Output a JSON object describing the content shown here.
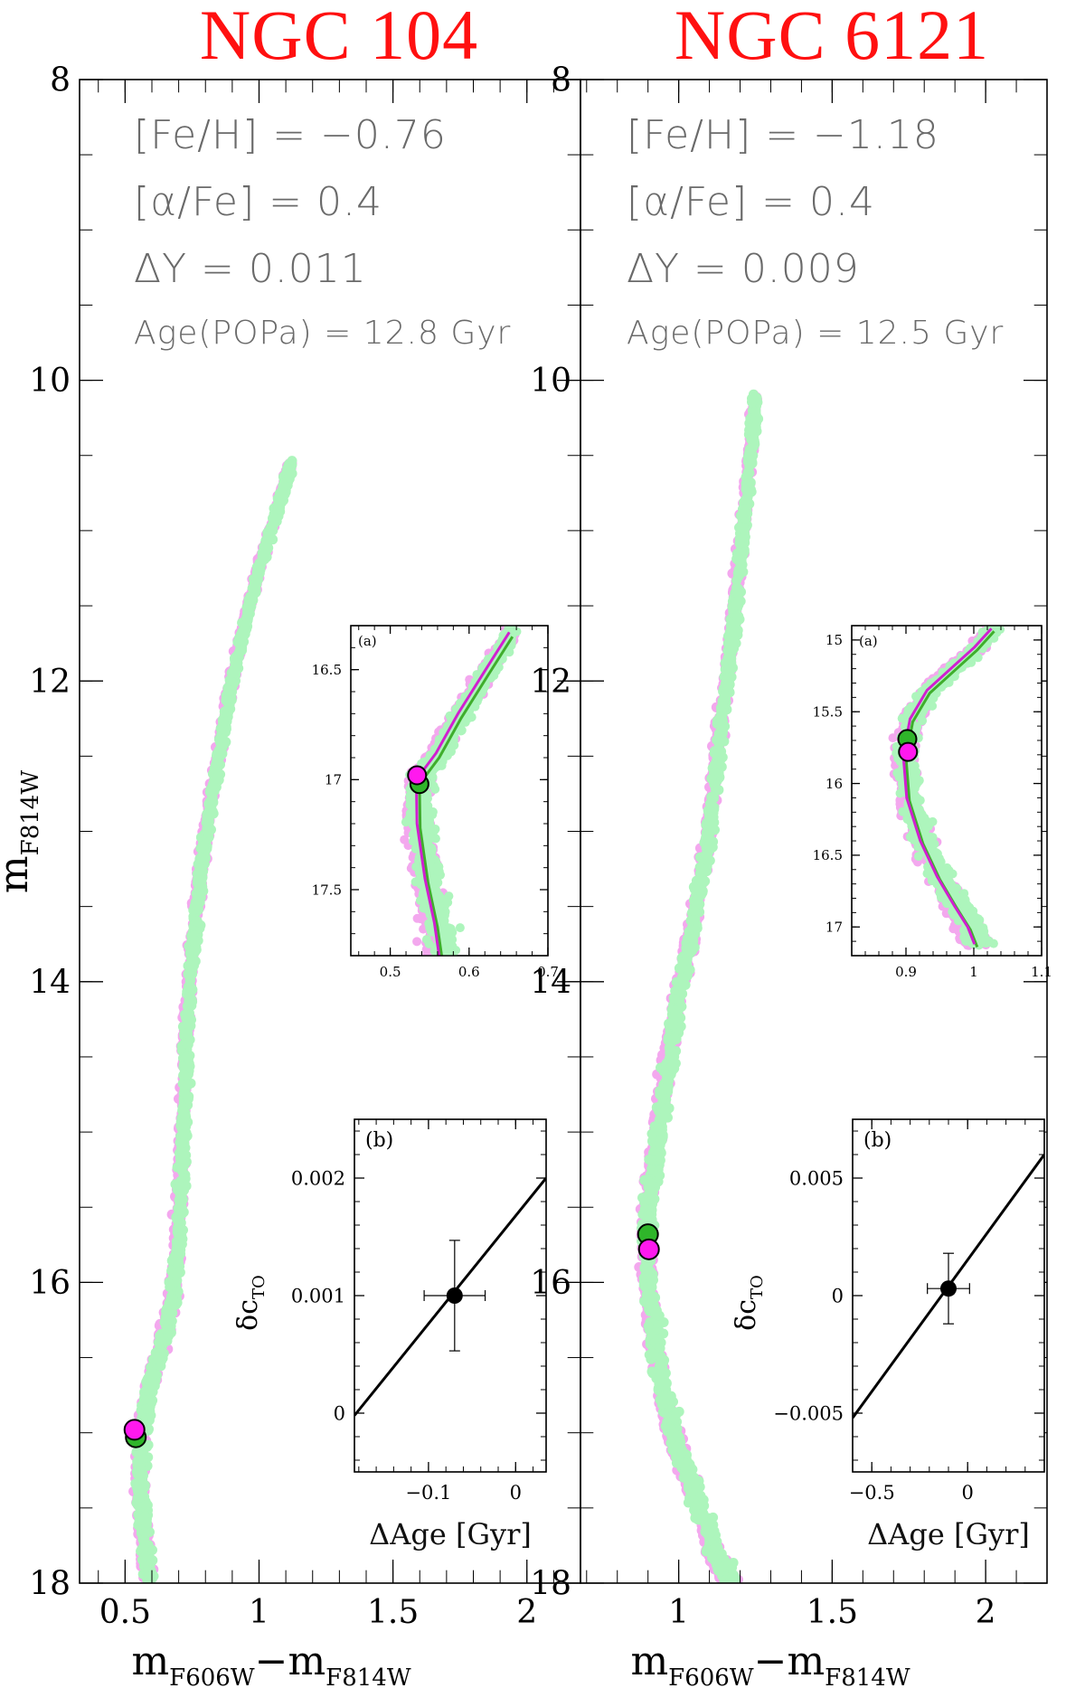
{
  "figure": {
    "y_label_main": "m",
    "y_label_sub": "F814W",
    "x_label_main_a": "m",
    "x_label_sub_a": "F606W",
    "x_label_dash": "−",
    "x_label_main_b": "m",
    "x_label_sub_b": "F814W"
  },
  "colors": {
    "popA": "#f3a8ee",
    "popB": "#adf5bc",
    "marker_green": "#2fb52a",
    "marker_magenta": "#ff19ee",
    "title_red": "#ff1010",
    "text_gray": "#6a6a6a"
  },
  "panels": [
    {
      "title": "NGC 104",
      "feh": "[Fe/H]  =  −0.76",
      "afe": "[α/Fe]  =  0.4",
      "dy": "ΔY  =  0.011",
      "age": "Age(POPa)  =  12.8  Gyr"
    },
    {
      "title": "NGC 6121",
      "feh": "[Fe/H]  =  −1.18",
      "afe": "[α/Fe]  =  0.4",
      "dy": "ΔY  =  0.009",
      "age": "Age(POPa)  =  12.5  Gyr"
    }
  ],
  "chart_data": [
    {
      "type": "scatter",
      "title": "NGC 104",
      "xlabel": "mF606W − mF814W",
      "ylabel": "mF814W",
      "xlim": [
        0.33,
        2.2
      ],
      "ylim": [
        18,
        8
      ],
      "x_ticks": [
        0.5,
        1,
        1.5,
        2
      ],
      "x_tick_labels": [
        "0.5",
        "1",
        "1.5",
        "2"
      ],
      "y_ticks": [
        8,
        10,
        12,
        14,
        16,
        18
      ],
      "y_tick_labels": [
        "8",
        "10",
        "12",
        "14",
        "16",
        "18"
      ],
      "ridge": [
        [
          1.12,
          10.55
        ],
        [
          1.07,
          10.85
        ],
        [
          1.0,
          11.25
        ],
        [
          0.95,
          11.6
        ],
        [
          0.9,
          12.0
        ],
        [
          0.86,
          12.4
        ],
        [
          0.82,
          12.8
        ],
        [
          0.78,
          13.3
        ],
        [
          0.75,
          13.8
        ],
        [
          0.73,
          14.3
        ],
        [
          0.72,
          14.8
        ],
        [
          0.71,
          15.3
        ],
        [
          0.7,
          15.7
        ],
        [
          0.68,
          16.1
        ],
        [
          0.64,
          16.4
        ],
        [
          0.59,
          16.7
        ],
        [
          0.56,
          17.0
        ],
        [
          0.56,
          17.4
        ],
        [
          0.57,
          17.7
        ],
        [
          0.59,
          18.0
        ]
      ],
      "markers": [
        {
          "name": "POPb turnoff",
          "x": 0.54,
          "y": 17.03,
          "color": "green"
        },
        {
          "name": "POPa turnoff",
          "x": 0.535,
          "y": 16.98,
          "color": "magenta"
        }
      ],
      "inset_a": {
        "label": "(a)",
        "xlim": [
          0.45,
          0.7
        ],
        "ylim": [
          17.8,
          16.3
        ],
        "x_ticks": [
          0.5,
          0.6,
          0.7
        ],
        "x_tick_labels": [
          "0.5",
          "0.6",
          "0.7"
        ],
        "y_ticks": [
          16.5,
          17,
          17.5
        ],
        "y_tick_labels": [
          "16.5",
          "17",
          "17.5"
        ],
        "fiducial": [
          [
            0.655,
            16.33
          ],
          [
            0.625,
            16.5
          ],
          [
            0.59,
            16.7
          ],
          [
            0.562,
            16.88
          ],
          [
            0.537,
            17.0
          ],
          [
            0.538,
            17.2
          ],
          [
            0.548,
            17.45
          ],
          [
            0.56,
            17.65
          ],
          [
            0.566,
            17.8
          ]
        ],
        "markers": [
          {
            "name": "POPb turnoff",
            "x": 0.537,
            "y": 17.02,
            "color": "green"
          },
          {
            "name": "POPa turnoff",
            "x": 0.534,
            "y": 16.98,
            "color": "magenta"
          }
        ]
      },
      "inset_b": {
        "label": "(b)",
        "xlabel": "ΔAge [Gyr]",
        "ylabel_main": "δc",
        "ylabel_sub": "TO",
        "xlim": [
          -0.185,
          0.035
        ],
        "ylim": [
          -0.0005,
          0.0025
        ],
        "x_ticks": [
          -0.1,
          0
        ],
        "x_tick_labels": [
          "−0.1",
          "0"
        ],
        "y_ticks": [
          0,
          0.001,
          0.002
        ],
        "y_tick_labels": [
          "0",
          "0.001",
          "0.002"
        ],
        "line": [
          [
            -0.185,
            -2e-05
          ],
          [
            0.035,
            0.002
          ]
        ],
        "point": {
          "x": -0.07,
          "y": 0.001,
          "xerr": 0.035,
          "yerr": 0.00047
        }
      }
    },
    {
      "type": "scatter",
      "title": "NGC 6121",
      "xlabel": "mF606W − mF814W",
      "ylabel": "mF814W",
      "xlim": [
        0.68,
        2.2
      ],
      "ylim": [
        18,
        8
      ],
      "x_ticks": [
        1,
        1.5,
        2
      ],
      "x_tick_labels": [
        "1",
        "1.5",
        "2"
      ],
      "y_ticks": [
        8,
        10,
        12,
        14,
        16,
        18
      ],
      "y_tick_labels": [
        "8",
        "10",
        "12",
        "14",
        "16",
        "18"
      ],
      "ridge": [
        [
          1.25,
          10.1
        ],
        [
          1.23,
          10.6
        ],
        [
          1.2,
          11.2
        ],
        [
          1.17,
          11.8
        ],
        [
          1.13,
          12.4
        ],
        [
          1.1,
          13.0
        ],
        [
          1.05,
          13.6
        ],
        [
          1.0,
          14.1
        ],
        [
          0.96,
          14.6
        ],
        [
          0.93,
          15.1
        ],
        [
          0.9,
          15.5
        ],
        [
          0.9,
          16.0
        ],
        [
          0.93,
          16.5
        ],
        [
          0.98,
          17.0
        ],
        [
          1.05,
          17.4
        ],
        [
          1.12,
          17.8
        ],
        [
          1.17,
          18.0
        ]
      ],
      "markers": [
        {
          "name": "POPb turnoff",
          "x": 0.9,
          "y": 15.68,
          "color": "green"
        },
        {
          "name": "POPa turnoff",
          "x": 0.903,
          "y": 15.78,
          "color": "magenta"
        }
      ],
      "inset_a": {
        "label": "(a)",
        "xlim": [
          0.82,
          1.1
        ],
        "ylim": [
          17.2,
          14.9
        ],
        "x_ticks": [
          0.9,
          1,
          1.1
        ],
        "x_tick_labels": [
          "0.9",
          "1",
          "1.1"
        ],
        "y_ticks": [
          15,
          15.5,
          16,
          16.5,
          17
        ],
        "y_tick_labels": [
          "15",
          "15.5",
          "16",
          "16.5",
          "17"
        ],
        "fiducial": [
          [
            1.03,
            14.92
          ],
          [
            1.005,
            15.05
          ],
          [
            0.97,
            15.2
          ],
          [
            0.935,
            15.35
          ],
          [
            0.91,
            15.55
          ],
          [
            0.9,
            15.8
          ],
          [
            0.905,
            16.1
          ],
          [
            0.925,
            16.4
          ],
          [
            0.95,
            16.65
          ],
          [
            0.975,
            16.85
          ],
          [
            0.995,
            17.0
          ],
          [
            1.005,
            17.12
          ]
        ],
        "markers": [
          {
            "name": "POPb turnoff",
            "x": 0.902,
            "y": 15.69,
            "color": "green"
          },
          {
            "name": "POPa turnoff",
            "x": 0.903,
            "y": 15.78,
            "color": "magenta"
          }
        ]
      },
      "inset_b": {
        "label": "(b)",
        "xlabel": "ΔAge [Gyr]",
        "ylabel_main": "δc",
        "ylabel_sub": "TO",
        "xlim": [
          -0.6,
          0.4
        ],
        "ylim": [
          -0.0075,
          0.0075
        ],
        "x_ticks": [
          -0.5,
          0
        ],
        "x_tick_labels": [
          "−0.5",
          "0"
        ],
        "y_ticks": [
          -0.005,
          0,
          0.005
        ],
        "y_tick_labels": [
          "−0.005",
          "0",
          "0.005"
        ],
        "line": [
          [
            -0.6,
            -0.0052
          ],
          [
            0.4,
            0.006
          ]
        ],
        "point": {
          "x": -0.1,
          "y": 0.0003,
          "xerr": 0.11,
          "yerr": 0.0015
        }
      }
    }
  ]
}
